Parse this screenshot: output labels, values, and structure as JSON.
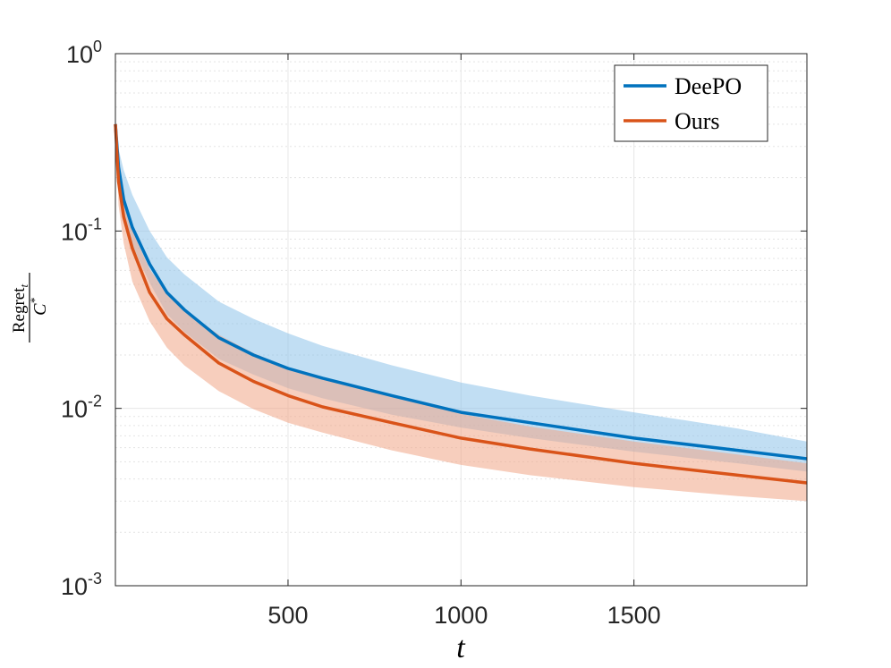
{
  "chart_data": {
    "type": "line",
    "xlabel": "t",
    "ylabel": {
      "numerator": "Regret",
      "numerator_sub": "t",
      "denominator": "C",
      "denominator_sup": "*"
    },
    "xlim": [
      1,
      2000
    ],
    "ylim": [
      0.001,
      1
    ],
    "yscale": "log",
    "grid": true,
    "x_ticks": [
      500,
      1000,
      1500
    ],
    "x_tick_labels": [
      "500",
      "1000",
      "1500"
    ],
    "y_ticks": [
      0.001,
      0.01,
      0.1,
      1
    ],
    "y_tick_labels": [
      {
        "base": "10",
        "exp": "-3"
      },
      {
        "base": "10",
        "exp": "-2"
      },
      {
        "base": "10",
        "exp": "-1"
      },
      {
        "base": "10",
        "exp": "0"
      }
    ],
    "legend_position": "top-right",
    "x": [
      1,
      10,
      25,
      50,
      100,
      150,
      200,
      300,
      400,
      500,
      600,
      800,
      1000,
      1200,
      1500,
      1800,
      2000
    ],
    "series": [
      {
        "name": "DeePO",
        "color": "#0072BD",
        "values": [
          0.4,
          0.23,
          0.15,
          0.105,
          0.065,
          0.045,
          0.036,
          0.025,
          0.02,
          0.0168,
          0.0148,
          0.0118,
          0.0095,
          0.0083,
          0.0068,
          0.0058,
          0.0052
        ],
        "upper": [
          0.4,
          0.29,
          0.22,
          0.16,
          0.1,
          0.071,
          0.057,
          0.04,
          0.032,
          0.0265,
          0.0225,
          0.0175,
          0.014,
          0.0118,
          0.0095,
          0.0077,
          0.0065
        ],
        "lower": [
          0.4,
          0.19,
          0.125,
          0.083,
          0.051,
          0.034,
          0.027,
          0.019,
          0.0155,
          0.013,
          0.0114,
          0.0092,
          0.0078,
          0.0068,
          0.0057,
          0.0049,
          0.0044
        ]
      },
      {
        "name": "Ours",
        "color": "#D95319",
        "values": [
          0.4,
          0.19,
          0.12,
          0.08,
          0.045,
          0.032,
          0.026,
          0.018,
          0.0142,
          0.0118,
          0.0102,
          0.0083,
          0.0068,
          0.0059,
          0.0049,
          0.0042,
          0.0038
        ],
        "upper": [
          0.4,
          0.22,
          0.145,
          0.1,
          0.061,
          0.044,
          0.036,
          0.026,
          0.0205,
          0.017,
          0.0148,
          0.0117,
          0.0093,
          0.0079,
          0.0065,
          0.0055,
          0.0049
        ],
        "lower": [
          0.4,
          0.14,
          0.085,
          0.052,
          0.031,
          0.022,
          0.0175,
          0.0125,
          0.0099,
          0.0083,
          0.0073,
          0.0058,
          0.0048,
          0.0042,
          0.0036,
          0.0032,
          0.003
        ]
      }
    ]
  }
}
